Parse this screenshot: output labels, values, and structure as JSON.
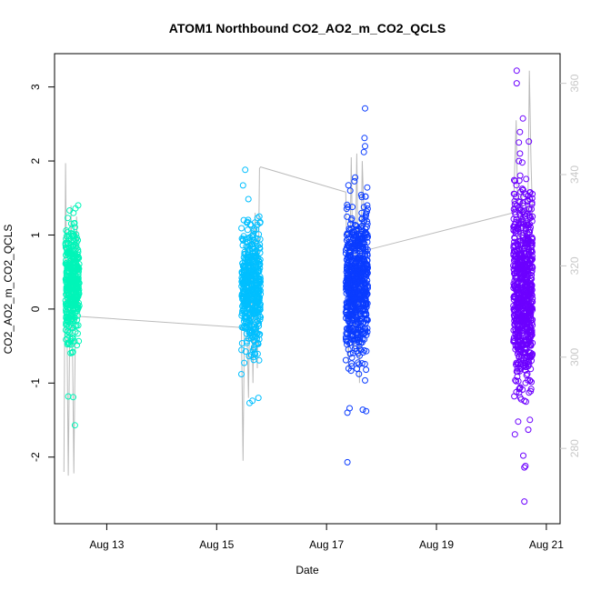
{
  "chart_data": {
    "type": "scatter",
    "title": "ATOM1 Northbound CO2_AO2_m_CO2_QCLS",
    "xlabel": "Date",
    "ylabel": "CO2_AO2_m_CO2_QCLS",
    "x_ticks": [
      "Aug 13",
      "Aug 15",
      "Aug 17",
      "Aug 19",
      "Aug 21"
    ],
    "x_tick_days": [
      13,
      15,
      17,
      19,
      21
    ],
    "xlim_days": [
      12.05,
      21.25
    ],
    "ylim": [
      -2.9,
      3.45
    ],
    "y_ticks": [
      -2,
      -1,
      0,
      1,
      2,
      3
    ],
    "y2_label": "",
    "y2lim": [
      263.5,
      366.5
    ],
    "y2_ticks": [
      280,
      300,
      320,
      340,
      360
    ],
    "grid": false,
    "colors": {
      "axis": "#000000",
      "secondary_axis": "#c8c8c8",
      "altitude_line": "#bbbbbb"
    },
    "series": [
      {
        "color": "#00f5b8",
        "day_range": [
          12.25,
          12.5
        ],
        "center": 0.35,
        "spread": 0.38,
        "min": -1.57,
        "max": 1.4,
        "count": 380,
        "outliers": [
          [
            12.42,
            -1.57
          ],
          [
            12.3,
            -1.18
          ],
          [
            12.39,
            -1.19
          ],
          [
            12.48,
            1.4
          ],
          [
            12.43,
            1.36
          ],
          [
            12.29,
            1.23
          ]
        ]
      },
      {
        "color": "#00bfff",
        "day_range": [
          15.45,
          15.8
        ],
        "center": 0.3,
        "spread": 0.42,
        "min": -1.27,
        "max": 1.88,
        "count": 500,
        "outliers": [
          [
            15.52,
            1.88
          ],
          [
            15.48,
            1.67
          ],
          [
            15.6,
            -1.27
          ],
          [
            15.65,
            -1.24
          ],
          [
            15.76,
            -1.2
          ],
          [
            15.45,
            -0.88
          ]
        ]
      },
      {
        "color": "#0a3cff",
        "day_range": [
          17.35,
          17.75
        ],
        "center": 0.35,
        "spread": 0.5,
        "min": -2.07,
        "max": 2.71,
        "count": 650,
        "outliers": [
          [
            17.7,
            2.71
          ],
          [
            17.69,
            2.31
          ],
          [
            17.7,
            2.2
          ],
          [
            17.68,
            2.12
          ],
          [
            17.38,
            -2.07
          ],
          [
            17.38,
            -1.4
          ],
          [
            17.72,
            -1.38
          ],
          [
            17.66,
            -1.36
          ],
          [
            17.42,
            -1.34
          ]
        ]
      },
      {
        "color": "#6c00ff",
        "day_range": [
          20.4,
          20.75
        ],
        "center": 0.2,
        "spread": 0.65,
        "min": -2.6,
        "max": 3.22,
        "count": 750,
        "outliers": [
          [
            20.46,
            3.22
          ],
          [
            20.46,
            3.05
          ],
          [
            20.5,
            2.25
          ],
          [
            20.52,
            2.1
          ],
          [
            20.5,
            2.0
          ],
          [
            20.6,
            -2.6
          ],
          [
            20.6,
            -2.14
          ],
          [
            20.62,
            -2.12
          ],
          [
            20.58,
            -1.98
          ]
        ]
      }
    ],
    "altitude_line": [
      [
        12.22,
        -2.2
      ],
      [
        12.25,
        1.97
      ],
      [
        12.3,
        -2.25
      ],
      [
        12.35,
        1.4
      ],
      [
        12.4,
        -2.22
      ],
      [
        12.45,
        1.25
      ],
      [
        12.5,
        -0.1
      ],
      [
        15.45,
        -0.25
      ],
      [
        15.48,
        -2.05
      ],
      [
        15.52,
        0.9
      ],
      [
        15.58,
        -1.2
      ],
      [
        15.62,
        1.1
      ],
      [
        15.66,
        -1.0
      ],
      [
        15.7,
        1.3
      ],
      [
        15.74,
        -0.8
      ],
      [
        15.78,
        1.9
      ],
      [
        15.8,
        1.92
      ],
      [
        17.35,
        1.58
      ],
      [
        17.4,
        -0.8
      ],
      [
        17.45,
        2.05
      ],
      [
        17.5,
        -0.6
      ],
      [
        17.55,
        2.1
      ],
      [
        17.6,
        -1.0
      ],
      [
        17.65,
        2.0
      ],
      [
        17.7,
        0.8
      ],
      [
        17.75,
        0.8
      ],
      [
        20.4,
        1.3
      ],
      [
        20.45,
        2.55
      ],
      [
        20.5,
        0.3
      ],
      [
        20.55,
        1.6
      ],
      [
        20.6,
        0.8
      ],
      [
        20.66,
        1.0
      ],
      [
        20.69,
        3.22
      ],
      [
        20.72,
        2.0
      ],
      [
        20.75,
        1.2
      ]
    ]
  }
}
